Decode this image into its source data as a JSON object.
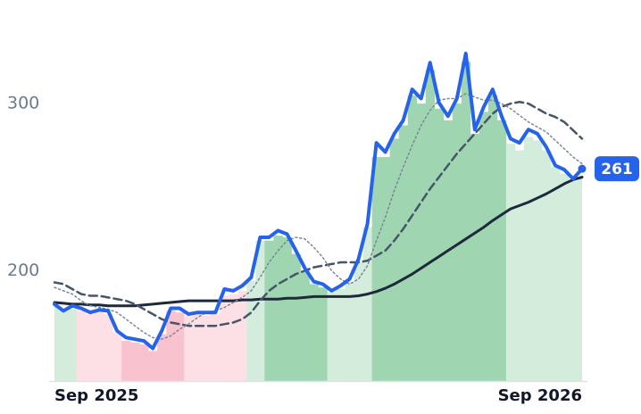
{
  "chart_data": {
    "type": "line",
    "categories": [
      "Sep 2025",
      null,
      null,
      null,
      null,
      null,
      null,
      null,
      null,
      null,
      null,
      null,
      null,
      null,
      null,
      null,
      null,
      null,
      null,
      null,
      null,
      null,
      null,
      null,
      null,
      null,
      null,
      null,
      null,
      null,
      null,
      null,
      null,
      null,
      null,
      null,
      null,
      null,
      null,
      null,
      null,
      null,
      null,
      null,
      null,
      null,
      null,
      null,
      null,
      null,
      null,
      null,
      null,
      null,
      null,
      null,
      null,
      null,
      null,
      "Sep 2026"
    ],
    "ylim": [
      134,
      362
    ],
    "yticks": [
      200,
      300
    ],
    "grid": false,
    "series": [
      {
        "color": "#2563eb",
        "style": "solid",
        "width": 4,
        "values": [
          180,
          176,
          179,
          177.5,
          175,
          176.5,
          176,
          164,
          160,
          159,
          158,
          153.5,
          164,
          177.5,
          177.5,
          174,
          175,
          175,
          175,
          189,
          188,
          191,
          196,
          220,
          220,
          224,
          222,
          212,
          201.5,
          193.5,
          192,
          188,
          191,
          195,
          207,
          228,
          276.5,
          271,
          282,
          290,
          308.5,
          303,
          324.5,
          300.5,
          292.5,
          303,
          330,
          284.5,
          298,
          308.5,
          292.5,
          279,
          276.5,
          284.5,
          282,
          274,
          263,
          260.5,
          255,
          261
        ]
      },
      {
        "color": "#7b8698",
        "style": "dotted",
        "width": 1.5,
        "values": [
          190,
          188,
          186,
          182,
          179,
          178,
          177,
          175,
          171,
          167,
          163,
          160,
          159,
          161,
          165,
          168,
          172,
          175,
          176,
          178,
          181,
          184,
          188,
          196,
          205,
          212,
          218,
          220,
          219,
          214,
          208,
          200,
          195,
          192,
          195,
          203,
          218,
          232,
          248,
          262,
          275,
          287,
          296,
          302,
          303,
          303,
          306,
          304,
          302,
          302,
          300,
          297,
          293,
          289,
          286,
          283,
          278,
          273,
          268,
          264
        ]
      },
      {
        "color": "#475569",
        "style": "dashed",
        "width": 2.5,
        "values": [
          193,
          192,
          189,
          186,
          185,
          185,
          184,
          183,
          182,
          180,
          177,
          174,
          171,
          169,
          168,
          167,
          167,
          167,
          167,
          168,
          169,
          171,
          175,
          182,
          188,
          192,
          195,
          198,
          200,
          202,
          203,
          204,
          205,
          205,
          205,
          206,
          209,
          212,
          218,
          225,
          233,
          241,
          249,
          256,
          263,
          270,
          276,
          282,
          288,
          294,
          298,
          300,
          301,
          300,
          297,
          294,
          292,
          289,
          284,
          279
        ]
      },
      {
        "color": "#1e293b",
        "style": "solid",
        "width": 3,
        "values": [
          181,
          180.5,
          180,
          180,
          179.5,
          179.5,
          179,
          179,
          179,
          179,
          179.5,
          180,
          180.5,
          181,
          181.5,
          182,
          182,
          182,
          182,
          182,
          182,
          182.5,
          182.5,
          183,
          183,
          183,
          183.5,
          183.5,
          184,
          184.5,
          184.5,
          184.5,
          184.5,
          184.5,
          185,
          186,
          187.5,
          189.5,
          192,
          195,
          198,
          201.5,
          205,
          208.5,
          212,
          215.5,
          219,
          222.5,
          226,
          230,
          233.5,
          237,
          239,
          241,
          243.5,
          246,
          249,
          252,
          254.5,
          256
        ]
      }
    ],
    "bars": {
      "values": [
        179,
        176,
        177,
        176,
        174,
        175,
        174,
        163,
        158,
        157,
        156,
        152,
        162,
        176,
        175,
        173,
        174,
        173,
        174,
        185,
        186,
        188,
        194,
        218,
        218,
        221,
        220,
        210,
        200,
        192,
        190,
        187,
        189,
        193,
        205,
        226,
        268,
        268,
        279,
        287,
        305,
        300,
        320,
        297,
        290,
        300,
        325,
        282,
        295,
        305,
        290,
        276,
        272,
        280,
        278,
        272,
        262,
        258,
        254,
        256
      ],
      "colors": [
        "#d3ecdb",
        "#d3ecdb",
        "#d3ecdb",
        "#fde0e6",
        "#fde0e6",
        "#fde0e6",
        "#fde0e6",
        "#fde0e6",
        "#f8c3ce",
        "#f8c3ce",
        "#f8c3ce",
        "#f8c3ce",
        "#f8c3ce",
        "#f8c3ce",
        "#f8c3ce",
        "#fde0e6",
        "#fde0e6",
        "#fde0e6",
        "#fde0e6",
        "#fde0e6",
        "#fde0e6",
        "#fde0e6",
        "#d3ecdb",
        "#d3ecdb",
        "#9fd6b1",
        "#9fd6b1",
        "#9fd6b1",
        "#9fd6b1",
        "#9fd6b1",
        "#9fd6b1",
        "#9fd6b1",
        "#d3ecdb",
        "#d3ecdb",
        "#d3ecdb",
        "#d3ecdb",
        "#d3ecdb",
        "#9fd6b1",
        "#9fd6b1",
        "#9fd6b1",
        "#9fd6b1",
        "#9fd6b1",
        "#9fd6b1",
        "#9fd6b1",
        "#9fd6b1",
        "#9fd6b1",
        "#9fd6b1",
        "#9fd6b1",
        "#9fd6b1",
        "#9fd6b1",
        "#9fd6b1",
        "#9fd6b1",
        "#d3ecdb",
        "#d3ecdb",
        "#d3ecdb",
        "#d3ecdb",
        "#d3ecdb",
        "#d3ecdb",
        "#d3ecdb",
        "#d3ecdb",
        "#d3ecdb"
      ]
    }
  }
}
